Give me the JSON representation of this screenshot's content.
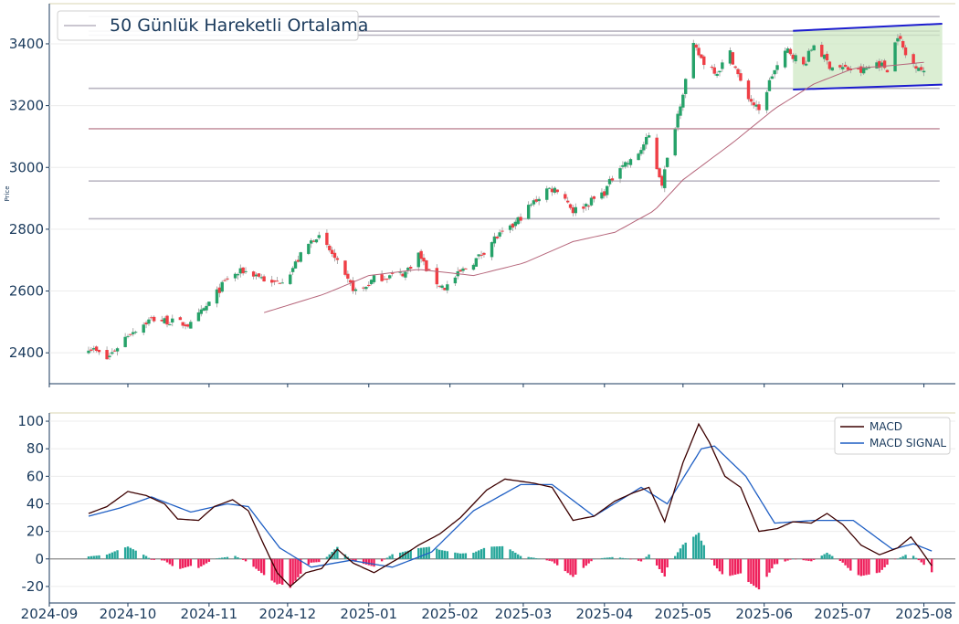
{
  "chart_data": [
    {
      "type": "candlestick",
      "title": "",
      "legend": {
        "entries": [
          "50 Günlük Hareketli Ortalama"
        ],
        "placement": "top-left"
      },
      "ylabel": "Price",
      "ylim": [
        2300,
        3530
      ],
      "yticks": [
        "2400",
        "2600",
        "2800",
        "3000",
        "3200",
        "3400"
      ],
      "colors": {
        "up": "#26a269",
        "down": "#ef3e45",
        "ma": "#b5657a",
        "channel": "#1c1ccf",
        "channel_fill": "#cfe8c4",
        "hline": "#b8b4c0"
      },
      "horizontal_levels": [
        3488,
        3441,
        3428,
        3256,
        3125,
        2956,
        2834
      ],
      "anchors": [
        [
          "2024-09-16",
          2420
        ],
        [
          "2024-09-23",
          2380
        ],
        [
          "2024-10-01",
          2460
        ],
        [
          "2024-10-10",
          2510
        ],
        [
          "2024-10-18",
          2500
        ],
        [
          "2024-10-25",
          2490
        ],
        [
          "2024-11-01",
          2560
        ],
        [
          "2024-11-08",
          2640
        ],
        [
          "2024-11-14",
          2665
        ],
        [
          "2024-11-20",
          2650
        ],
        [
          "2024-11-25",
          2620
        ],
        [
          "2024-12-01",
          2650
        ],
        [
          "2024-12-08",
          2740
        ],
        [
          "2024-12-12",
          2780
        ],
        [
          "2024-12-18",
          2720
        ],
        [
          "2024-12-23",
          2640
        ],
        [
          "2024-12-28",
          2590
        ],
        [
          "2025-01-03",
          2640
        ],
        [
          "2025-01-10",
          2650
        ],
        [
          "2025-01-15",
          2660
        ],
        [
          "2025-01-20",
          2720
        ],
        [
          "2025-01-25",
          2640
        ],
        [
          "2025-01-30",
          2610
        ],
        [
          "2025-02-05",
          2660
        ],
        [
          "2025-02-12",
          2710
        ],
        [
          "2025-02-18",
          2770
        ],
        [
          "2025-02-24",
          2800
        ],
        [
          "2025-03-03",
          2870
        ],
        [
          "2025-03-10",
          2930
        ],
        [
          "2025-03-15",
          2930
        ],
        [
          "2025-03-20",
          2860
        ],
        [
          "2025-03-25",
          2880
        ],
        [
          "2025-04-01",
          2920
        ],
        [
          "2025-04-07",
          3010
        ],
        [
          "2025-04-12",
          3020
        ],
        [
          "2025-04-18",
          3100
        ],
        [
          "2025-04-21",
          3000
        ],
        [
          "2025-04-23",
          2950
        ],
        [
          "2025-04-30",
          3210
        ],
        [
          "2025-05-05",
          3390
        ],
        [
          "2025-05-09",
          3340
        ],
        [
          "2025-05-14",
          3310
        ],
        [
          "2025-05-19",
          3370
        ],
        [
          "2025-05-24",
          3250
        ],
        [
          "2025-05-30",
          3180
        ],
        [
          "2025-06-04",
          3300
        ],
        [
          "2025-06-10",
          3380
        ],
        [
          "2025-06-16",
          3330
        ],
        [
          "2025-06-20",
          3400
        ],
        [
          "2025-06-26",
          3330
        ],
        [
          "2025-07-02",
          3320
        ],
        [
          "2025-07-08",
          3310
        ],
        [
          "2025-07-14",
          3340
        ],
        [
          "2025-07-18",
          3320
        ],
        [
          "2025-07-22",
          3430
        ],
        [
          "2025-07-26",
          3340
        ],
        [
          "2025-07-30",
          3330
        ],
        [
          "2025-08-02",
          3290
        ]
      ],
      "ma50_anchors": [
        [
          "2024-11-22",
          2530
        ],
        [
          "2024-12-15",
          2590
        ],
        [
          "2025-01-01",
          2650
        ],
        [
          "2025-01-20",
          2670
        ],
        [
          "2025-02-10",
          2650
        ],
        [
          "2025-03-01",
          2690
        ],
        [
          "2025-03-20",
          2760
        ],
        [
          "2025-04-05",
          2790
        ],
        [
          "2025-04-20",
          2860
        ],
        [
          "2025-05-01",
          2960
        ],
        [
          "2025-05-20",
          3080
        ],
        [
          "2025-06-05",
          3190
        ],
        [
          "2025-06-20",
          3270
        ],
        [
          "2025-07-05",
          3320
        ],
        [
          "2025-07-20",
          3330
        ],
        [
          "2025-08-01",
          3340
        ]
      ],
      "channel": {
        "start": "2025-06-12",
        "end": "2025-08-08",
        "upper": [
          3442,
          3465
        ],
        "lower": [
          3252,
          3268
        ]
      }
    },
    {
      "type": "line",
      "legend": {
        "entries": [
          "MACD",
          "MACD SIGNAL"
        ],
        "placement": "top-right"
      },
      "ylim": [
        -32,
        106
      ],
      "yticks": [
        "-20",
        "0",
        "20",
        "40",
        "60",
        "80",
        "100"
      ],
      "xlim": [
        "2024-09-01",
        "2025-08-13"
      ],
      "xticks": [
        "2024-09",
        "2024-10",
        "2024-11",
        "2024-12",
        "2025-01",
        "2025-02",
        "2025-03",
        "2025-04",
        "2025-05",
        "2025-06",
        "2025-07",
        "2025-08"
      ],
      "colors": {
        "macd": "#3c0000",
        "signal": "#1f5fc4",
        "hist_pos": "#26a69a",
        "hist_neg": "#ef1f5b",
        "zero": "#888888"
      },
      "macd_anchors": [
        [
          "2024-09-16",
          33
        ],
        [
          "2024-09-23",
          38
        ],
        [
          "2024-10-01",
          49
        ],
        [
          "2024-10-08",
          46
        ],
        [
          "2024-10-15",
          40
        ],
        [
          "2024-10-20",
          29
        ],
        [
          "2024-10-28",
          28
        ],
        [
          "2024-11-03",
          38
        ],
        [
          "2024-11-10",
          43
        ],
        [
          "2024-11-16",
          35
        ],
        [
          "2024-11-22",
          10
        ],
        [
          "2024-11-27",
          -10
        ],
        [
          "2024-12-02",
          -20
        ],
        [
          "2024-12-08",
          -10
        ],
        [
          "2024-12-14",
          -7
        ],
        [
          "2024-12-20",
          7
        ],
        [
          "2024-12-26",
          -3
        ],
        [
          "2025-01-03",
          -10
        ],
        [
          "2025-01-12",
          0
        ],
        [
          "2025-01-20",
          10
        ],
        [
          "2025-01-28",
          18
        ],
        [
          "2025-02-05",
          30
        ],
        [
          "2025-02-15",
          50
        ],
        [
          "2025-02-22",
          58
        ],
        [
          "2025-03-05",
          55
        ],
        [
          "2025-03-12",
          52
        ],
        [
          "2025-03-20",
          28
        ],
        [
          "2025-03-28",
          31
        ],
        [
          "2025-04-05",
          42
        ],
        [
          "2025-04-12",
          48
        ],
        [
          "2025-04-18",
          52
        ],
        [
          "2025-04-24",
          27
        ],
        [
          "2025-05-01",
          70
        ],
        [
          "2025-05-07",
          98
        ],
        [
          "2025-05-11",
          85
        ],
        [
          "2025-05-17",
          60
        ],
        [
          "2025-05-23",
          52
        ],
        [
          "2025-05-30",
          20
        ],
        [
          "2025-06-06",
          22
        ],
        [
          "2025-06-12",
          27
        ],
        [
          "2025-06-19",
          26
        ],
        [
          "2025-06-25",
          33
        ],
        [
          "2025-07-01",
          25
        ],
        [
          "2025-07-08",
          10
        ],
        [
          "2025-07-15",
          3
        ],
        [
          "2025-07-22",
          8
        ],
        [
          "2025-07-27",
          16
        ],
        [
          "2025-07-31",
          6
        ],
        [
          "2025-08-04",
          -5
        ]
      ],
      "signal_anchors": [
        [
          "2024-09-16",
          31
        ],
        [
          "2024-09-28",
          37
        ],
        [
          "2024-10-10",
          45
        ],
        [
          "2024-10-25",
          34
        ],
        [
          "2024-11-08",
          40
        ],
        [
          "2024-11-16",
          38
        ],
        [
          "2024-11-28",
          8
        ],
        [
          "2024-12-10",
          -6
        ],
        [
          "2024-12-25",
          -1
        ],
        [
          "2025-01-10",
          -6
        ],
        [
          "2025-01-25",
          5
        ],
        [
          "2025-02-10",
          35
        ],
        [
          "2025-02-28",
          54
        ],
        [
          "2025-03-12",
          54
        ],
        [
          "2025-03-28",
          31
        ],
        [
          "2025-04-15",
          52
        ],
        [
          "2025-04-25",
          40
        ],
        [
          "2025-05-08",
          80
        ],
        [
          "2025-05-13",
          82
        ],
        [
          "2025-05-25",
          60
        ],
        [
          "2025-06-05",
          26
        ],
        [
          "2025-06-20",
          28
        ],
        [
          "2025-07-05",
          28
        ],
        [
          "2025-07-20",
          7
        ],
        [
          "2025-07-28",
          11
        ],
        [
          "2025-08-05",
          5
        ]
      ]
    }
  ]
}
